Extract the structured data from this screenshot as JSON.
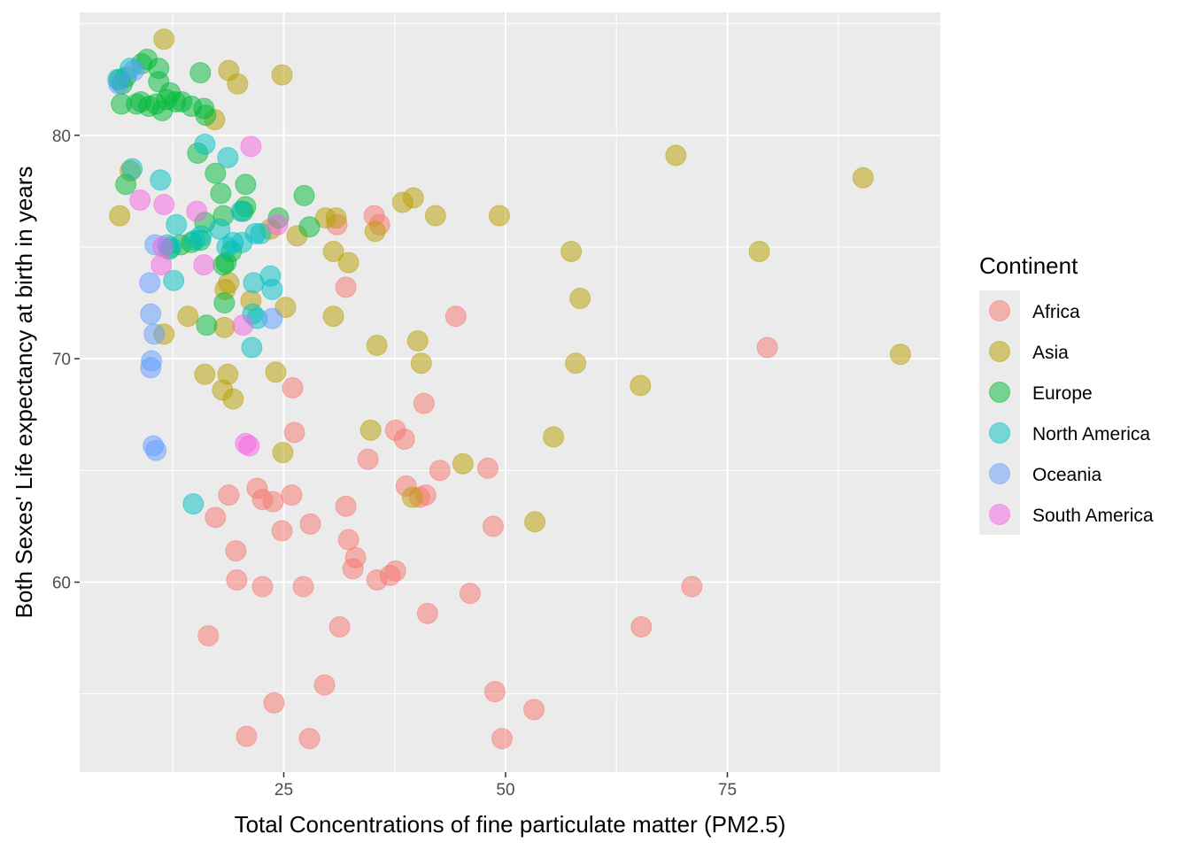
{
  "chart_data": {
    "type": "scatter",
    "xlabel": "Total Concentrations of fine particulate matter (PM2.5)",
    "ylabel": "Both Sexes' Life expectancy at birth in years",
    "xlim": [
      2,
      99
    ],
    "ylim": [
      51.5,
      85.5
    ],
    "x_ticks": [
      25,
      50,
      75
    ],
    "y_ticks": [
      60,
      70,
      80
    ],
    "grid": true,
    "legend": {
      "title": "Continent",
      "position": "right"
    },
    "series": [
      {
        "name": "Africa",
        "color": "#F8766D",
        "points": [
          [
            79.5,
            70.5
          ],
          [
            44.4,
            71.9
          ],
          [
            35.2,
            76.4
          ],
          [
            35.8,
            76.0
          ],
          [
            31.0,
            76.0
          ],
          [
            32.0,
            73.2
          ],
          [
            26.0,
            68.7
          ],
          [
            26.2,
            66.7
          ],
          [
            40.8,
            68.0
          ],
          [
            37.6,
            66.8
          ],
          [
            38.6,
            66.4
          ],
          [
            42.6,
            65.0
          ],
          [
            48.0,
            65.1
          ],
          [
            34.5,
            65.5
          ],
          [
            38.8,
            64.3
          ],
          [
            41.0,
            63.9
          ],
          [
            40.3,
            63.8
          ],
          [
            22.0,
            64.2
          ],
          [
            22.6,
            63.7
          ],
          [
            23.8,
            63.6
          ],
          [
            25.9,
            63.9
          ],
          [
            18.8,
            63.9
          ],
          [
            17.3,
            62.9
          ],
          [
            24.8,
            62.3
          ],
          [
            28.0,
            62.6
          ],
          [
            32.0,
            63.4
          ],
          [
            48.6,
            62.5
          ],
          [
            32.3,
            61.9
          ],
          [
            33.1,
            61.1
          ],
          [
            32.8,
            60.6
          ],
          [
            37.6,
            60.5
          ],
          [
            37.0,
            60.3
          ],
          [
            35.5,
            60.1
          ],
          [
            19.6,
            61.4
          ],
          [
            19.7,
            60.1
          ],
          [
            22.6,
            59.8
          ],
          [
            27.2,
            59.8
          ],
          [
            46.0,
            59.5
          ],
          [
            71.0,
            59.8
          ],
          [
            41.2,
            58.6
          ],
          [
            31.3,
            58.0
          ],
          [
            65.3,
            58.0
          ],
          [
            16.5,
            57.6
          ],
          [
            29.6,
            55.4
          ],
          [
            48.8,
            55.1
          ],
          [
            53.2,
            54.3
          ],
          [
            23.9,
            54.6
          ],
          [
            20.8,
            53.1
          ],
          [
            27.9,
            53.0
          ],
          [
            49.6,
            53.0
          ]
        ]
      },
      {
        "name": "Asia",
        "color": "#B79F00",
        "points": [
          [
            11.5,
            84.3
          ],
          [
            18.8,
            82.9
          ],
          [
            19.8,
            82.3
          ],
          [
            24.8,
            82.7
          ],
          [
            17.2,
            80.7
          ],
          [
            69.2,
            79.1
          ],
          [
            90.3,
            78.1
          ],
          [
            7.7,
            78.4
          ],
          [
            6.5,
            76.4
          ],
          [
            39.6,
            77.2
          ],
          [
            38.4,
            77.0
          ],
          [
            42.1,
            76.4
          ],
          [
            49.3,
            76.4
          ],
          [
            29.7,
            76.3
          ],
          [
            30.9,
            76.3
          ],
          [
            26.5,
            75.5
          ],
          [
            35.3,
            75.7
          ],
          [
            30.6,
            74.8
          ],
          [
            32.3,
            74.3
          ],
          [
            57.4,
            74.8
          ],
          [
            78.6,
            74.8
          ],
          [
            18.8,
            73.4
          ],
          [
            18.4,
            73.1
          ],
          [
            21.3,
            72.6
          ],
          [
            25.2,
            72.3
          ],
          [
            14.2,
            71.9
          ],
          [
            30.6,
            71.9
          ],
          [
            58.4,
            72.7
          ],
          [
            18.3,
            71.4
          ],
          [
            11.5,
            71.1
          ],
          [
            35.5,
            70.6
          ],
          [
            40.1,
            70.8
          ],
          [
            94.5,
            70.2
          ],
          [
            40.5,
            69.8
          ],
          [
            57.9,
            69.8
          ],
          [
            16.1,
            69.3
          ],
          [
            18.7,
            69.3
          ],
          [
            24.1,
            69.4
          ],
          [
            18.1,
            68.6
          ],
          [
            19.3,
            68.2
          ],
          [
            65.2,
            68.8
          ],
          [
            34.8,
            66.8
          ],
          [
            55.4,
            66.5
          ],
          [
            24.9,
            65.8
          ],
          [
            45.2,
            65.3
          ],
          [
            39.5,
            63.8
          ],
          [
            53.3,
            62.7
          ],
          [
            23.5,
            75.8
          ]
        ]
      },
      {
        "name": "Europe",
        "color": "#00BA38",
        "points": [
          [
            6.5,
            82.5
          ],
          [
            6.8,
            82.3
          ],
          [
            7.2,
            82.6
          ],
          [
            9.0,
            83.2
          ],
          [
            9.6,
            83.4
          ],
          [
            10.9,
            83.0
          ],
          [
            6.7,
            81.4
          ],
          [
            8.4,
            81.4
          ],
          [
            8.9,
            81.5
          ],
          [
            10.9,
            82.4
          ],
          [
            9.8,
            81.3
          ],
          [
            10.6,
            81.4
          ],
          [
            11.3,
            81.1
          ],
          [
            11.8,
            81.6
          ],
          [
            12.2,
            81.9
          ],
          [
            12.8,
            81.5
          ],
          [
            13.5,
            81.5
          ],
          [
            14.6,
            81.3
          ],
          [
            16.0,
            81.2
          ],
          [
            16.2,
            80.9
          ],
          [
            15.6,
            82.8
          ],
          [
            15.3,
            79.2
          ],
          [
            17.3,
            78.3
          ],
          [
            17.9,
            77.4
          ],
          [
            20.7,
            77.8
          ],
          [
            7.2,
            77.8
          ],
          [
            20.7,
            76.8
          ],
          [
            20.4,
            76.6
          ],
          [
            18.2,
            76.4
          ],
          [
            27.3,
            77.3
          ],
          [
            24.4,
            76.3
          ],
          [
            27.9,
            75.9
          ],
          [
            16.1,
            76.1
          ],
          [
            15.6,
            75.3
          ],
          [
            13.4,
            75.1
          ],
          [
            19.1,
            74.8
          ],
          [
            18.5,
            74.3
          ],
          [
            18.2,
            74.2
          ],
          [
            18.3,
            72.5
          ],
          [
            16.3,
            71.5
          ],
          [
            14.6,
            75.2
          ],
          [
            12.1,
            74.9
          ]
        ]
      },
      {
        "name": "North America",
        "color": "#00BFC4",
        "points": [
          [
            6.3,
            82.5
          ],
          [
            7.7,
            83.0
          ],
          [
            7.9,
            78.5
          ],
          [
            11.1,
            78.0
          ],
          [
            16.1,
            79.6
          ],
          [
            18.7,
            79.0
          ],
          [
            12.9,
            76.0
          ],
          [
            15.0,
            75.3
          ],
          [
            15.7,
            75.5
          ],
          [
            17.8,
            75.8
          ],
          [
            20.2,
            76.6
          ],
          [
            19.3,
            75.2
          ],
          [
            20.3,
            75.2
          ],
          [
            21.8,
            75.6
          ],
          [
            22.4,
            75.6
          ],
          [
            18.6,
            75.0
          ],
          [
            12.3,
            75.0
          ],
          [
            11.9,
            75.1
          ],
          [
            12.6,
            73.5
          ],
          [
            21.6,
            73.4
          ],
          [
            23.5,
            73.7
          ],
          [
            23.7,
            73.1
          ],
          [
            21.5,
            72.0
          ],
          [
            22.0,
            71.8
          ],
          [
            21.4,
            70.5
          ],
          [
            14.8,
            63.5
          ]
        ]
      },
      {
        "name": "Oceania",
        "color": "#619CFF",
        "points": [
          [
            6.4,
            82.3
          ],
          [
            8.1,
            82.9
          ],
          [
            10.5,
            75.1
          ],
          [
            9.9,
            73.4
          ],
          [
            10.0,
            72.0
          ],
          [
            10.4,
            71.1
          ],
          [
            10.1,
            69.9
          ],
          [
            10.0,
            69.6
          ],
          [
            10.3,
            66.1
          ],
          [
            10.6,
            65.9
          ],
          [
            23.7,
            71.8
          ]
        ]
      },
      {
        "name": "South America",
        "color": "#F564E3",
        "points": [
          [
            21.3,
            79.5
          ],
          [
            8.8,
            77.1
          ],
          [
            11.5,
            76.9
          ],
          [
            15.2,
            76.6
          ],
          [
            24.3,
            76.0
          ],
          [
            11.4,
            75.0
          ],
          [
            11.2,
            74.2
          ],
          [
            16.0,
            74.2
          ],
          [
            20.4,
            71.5
          ],
          [
            20.7,
            66.2
          ],
          [
            21.1,
            66.1
          ]
        ]
      }
    ]
  }
}
